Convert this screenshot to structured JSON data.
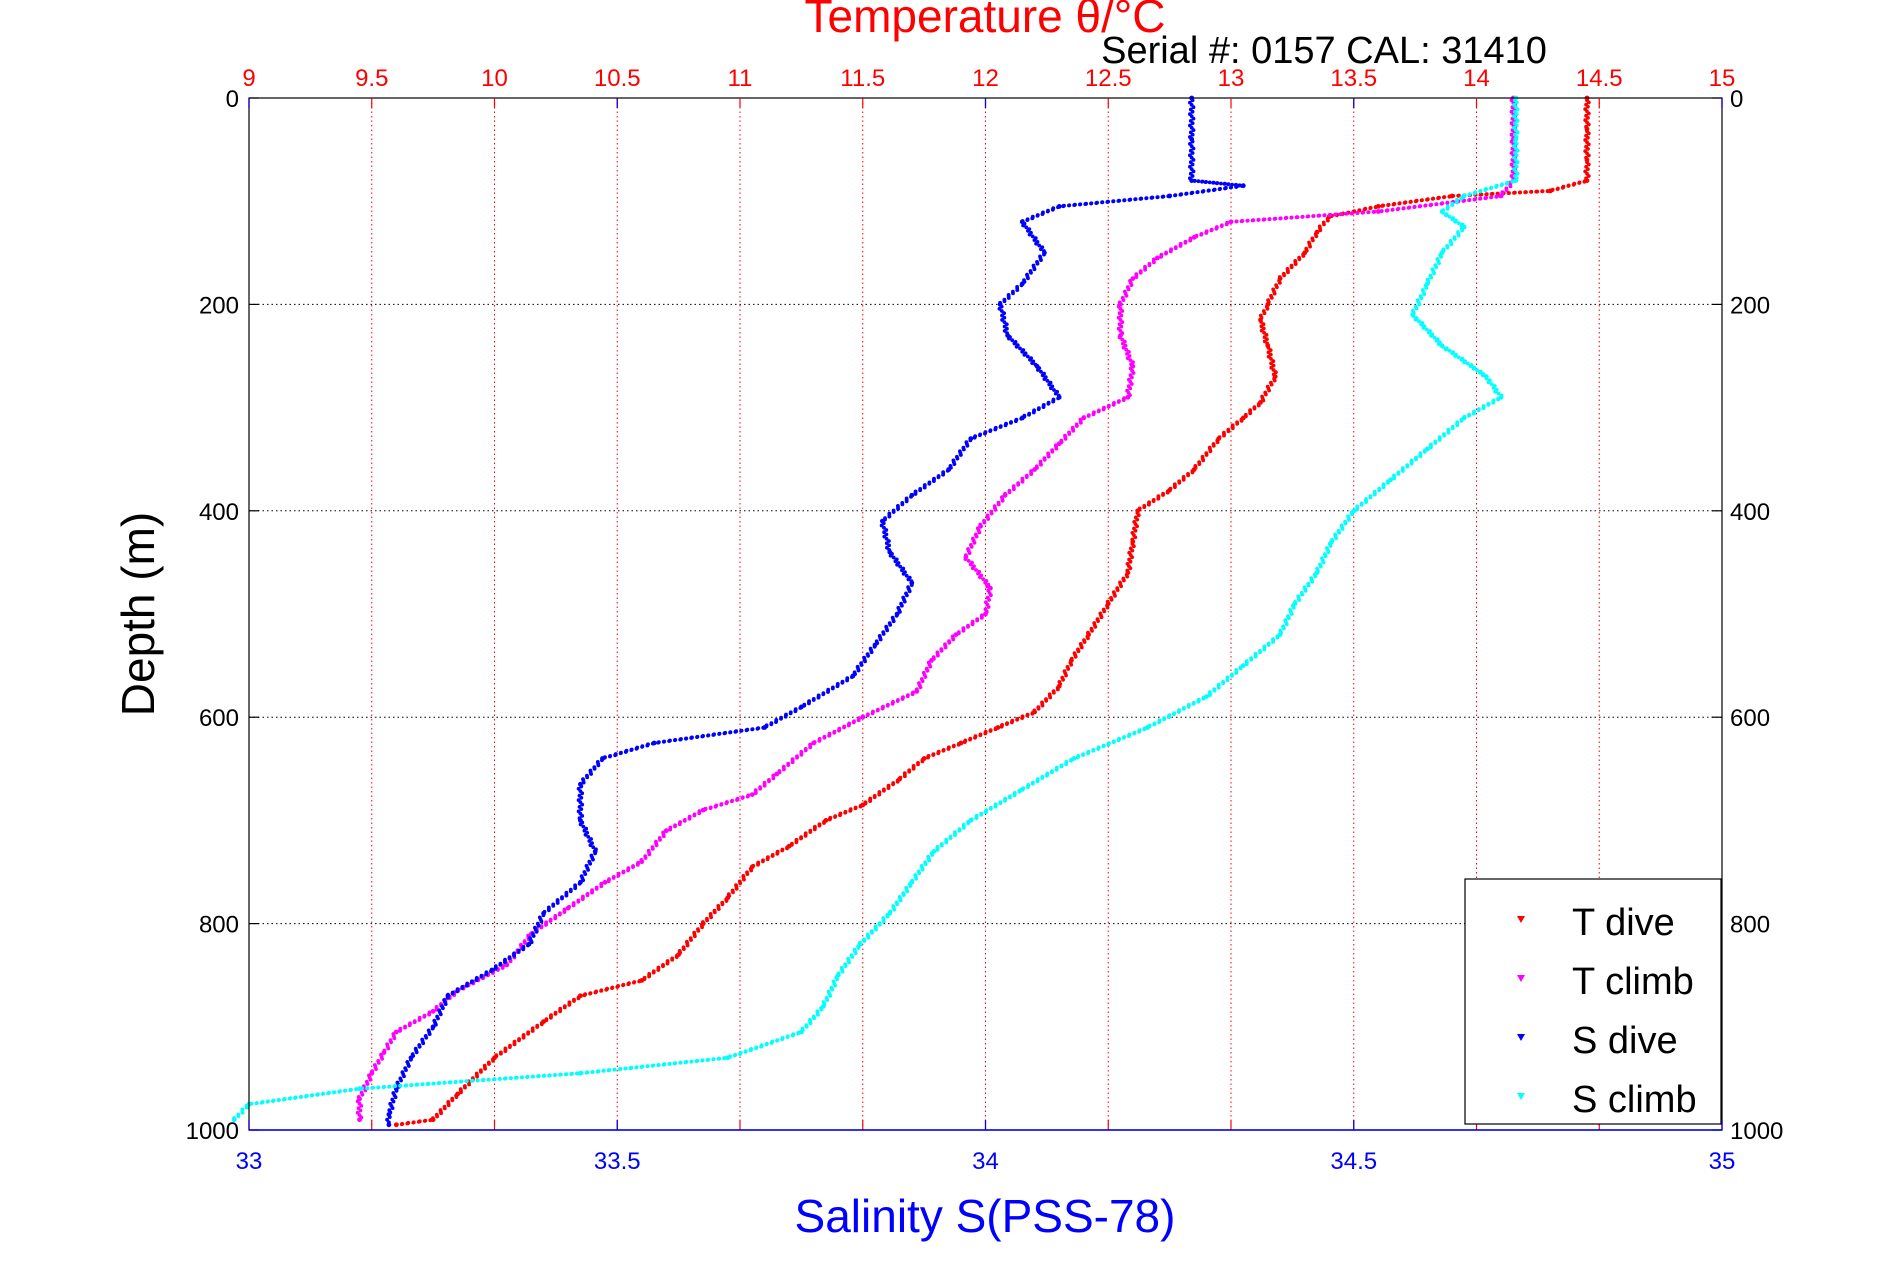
{
  "chart_data": {
    "type": "scatter",
    "title": "Temperature θ/°C",
    "subtitle": "Serial #: 0157  CAL: 31410",
    "ylabel": "Depth (m)",
    "xlabel": "Salinity S(PSS-78)",
    "top_axis": {
      "label": "Temperature θ/°C",
      "range": [
        9,
        15
      ],
      "ticks": [
        9,
        9.5,
        10,
        10.5,
        11,
        11.5,
        12,
        12.5,
        13,
        13.5,
        14,
        14.5,
        15
      ],
      "tick_labels": [
        "9",
        "9.5",
        "10",
        "10.5",
        "11",
        "11.5",
        "12",
        "12.5",
        "13",
        "13.5",
        "14",
        "14.5",
        "15"
      ],
      "color": "#ff0000"
    },
    "bottom_axis": {
      "label": "Salinity S(PSS-78)",
      "range": [
        33,
        35
      ],
      "ticks": [
        33,
        33.5,
        34,
        34.5,
        35
      ],
      "tick_labels": [
        "33",
        "33.5",
        "34",
        "34.5",
        "35"
      ],
      "color": "#0000ff"
    },
    "y_axis": {
      "range": [
        0,
        1000
      ],
      "reversed": true,
      "ticks": [
        0,
        200,
        400,
        600,
        800,
        1000
      ],
      "tick_labels": [
        "0",
        "200",
        "400",
        "600",
        "800",
        "1000"
      ]
    },
    "grid": true,
    "legend": "bottom-right",
    "series": [
      {
        "name": "T dive",
        "axis": "top",
        "color": "#ff0000",
        "points": [
          [
            14.45,
            0
          ],
          [
            14.45,
            30
          ],
          [
            14.45,
            60
          ],
          [
            14.45,
            80
          ],
          [
            14.3,
            90
          ],
          [
            13.9,
            95
          ],
          [
            13.6,
            105
          ],
          [
            13.4,
            115
          ],
          [
            13.35,
            130
          ],
          [
            13.3,
            150
          ],
          [
            13.2,
            175
          ],
          [
            13.15,
            200
          ],
          [
            13.12,
            215
          ],
          [
            13.15,
            240
          ],
          [
            13.18,
            270
          ],
          [
            13.12,
            295
          ],
          [
            13.05,
            310
          ],
          [
            12.95,
            330
          ],
          [
            12.85,
            360
          ],
          [
            12.75,
            380
          ],
          [
            12.62,
            400
          ],
          [
            12.6,
            430
          ],
          [
            12.58,
            460
          ],
          [
            12.5,
            490
          ],
          [
            12.42,
            520
          ],
          [
            12.35,
            545
          ],
          [
            12.3,
            570
          ],
          [
            12.2,
            595
          ],
          [
            12.05,
            610
          ],
          [
            11.9,
            625
          ],
          [
            11.75,
            640
          ],
          [
            11.65,
            660
          ],
          [
            11.5,
            685
          ],
          [
            11.35,
            700
          ],
          [
            11.2,
            725
          ],
          [
            11.05,
            745
          ],
          [
            10.95,
            775
          ],
          [
            10.85,
            800
          ],
          [
            10.75,
            830
          ],
          [
            10.6,
            855
          ],
          [
            10.35,
            870
          ],
          [
            10.2,
            895
          ],
          [
            10,
            930
          ],
          [
            9.85,
            965
          ],
          [
            9.75,
            990
          ],
          [
            9.6,
            995
          ]
        ]
      },
      {
        "name": "T climb",
        "axis": "top",
        "color": "#ff00ff",
        "points": [
          [
            14.15,
            0
          ],
          [
            14.15,
            40
          ],
          [
            14.15,
            80
          ],
          [
            14.1,
            95
          ],
          [
            13.6,
            110
          ],
          [
            13.0,
            120
          ],
          [
            12.85,
            135
          ],
          [
            12.7,
            155
          ],
          [
            12.6,
            175
          ],
          [
            12.55,
            200
          ],
          [
            12.55,
            230
          ],
          [
            12.6,
            260
          ],
          [
            12.58,
            290
          ],
          [
            12.4,
            310
          ],
          [
            12.3,
            335
          ],
          [
            12.2,
            360
          ],
          [
            12.08,
            385
          ],
          [
            11.98,
            415
          ],
          [
            11.92,
            445
          ],
          [
            12.02,
            475
          ],
          [
            12.0,
            500
          ],
          [
            11.88,
            520
          ],
          [
            11.78,
            545
          ],
          [
            11.72,
            575
          ],
          [
            11.5,
            600
          ],
          [
            11.3,
            625
          ],
          [
            11.15,
            655
          ],
          [
            11.05,
            675
          ],
          [
            10.85,
            690
          ],
          [
            10.7,
            710
          ],
          [
            10.6,
            740
          ],
          [
            10.45,
            760
          ],
          [
            10.3,
            785
          ],
          [
            10.15,
            810
          ],
          [
            10.05,
            840
          ],
          [
            9.85,
            865
          ],
          [
            9.75,
            885
          ],
          [
            9.6,
            905
          ],
          [
            9.55,
            925
          ],
          [
            9.5,
            945
          ],
          [
            9.45,
            970
          ],
          [
            9.45,
            990
          ]
        ]
      },
      {
        "name": "S dive",
        "axis": "bottom",
        "color": "#0000ff",
        "points": [
          [
            34.28,
            0
          ],
          [
            34.28,
            40
          ],
          [
            34.28,
            80
          ],
          [
            34.35,
            85
          ],
          [
            34.25,
            95
          ],
          [
            34.1,
            105
          ],
          [
            34.05,
            120
          ],
          [
            34.08,
            150
          ],
          [
            34.05,
            180
          ],
          [
            34.02,
            200
          ],
          [
            34.03,
            230
          ],
          [
            34.07,
            260
          ],
          [
            34.1,
            290
          ],
          [
            34.05,
            310
          ],
          [
            33.98,
            330
          ],
          [
            33.95,
            360
          ],
          [
            33.9,
            385
          ],
          [
            33.86,
            410
          ],
          [
            33.87,
            440
          ],
          [
            33.9,
            470
          ],
          [
            33.88,
            500
          ],
          [
            33.85,
            530
          ],
          [
            33.82,
            560
          ],
          [
            33.75,
            590
          ],
          [
            33.7,
            610
          ],
          [
            33.55,
            625
          ],
          [
            33.48,
            640
          ],
          [
            33.45,
            665
          ],
          [
            33.45,
            700
          ],
          [
            33.47,
            730
          ],
          [
            33.45,
            760
          ],
          [
            33.4,
            790
          ],
          [
            33.38,
            820
          ],
          [
            33.33,
            845
          ],
          [
            33.27,
            870
          ],
          [
            33.25,
            900
          ],
          [
            33.22,
            930
          ],
          [
            33.2,
            960
          ],
          [
            33.19,
            985
          ],
          [
            33.19,
            995
          ]
        ]
      },
      {
        "name": "S climb",
        "axis": "bottom",
        "color": "#00ffff",
        "points": [
          [
            34.72,
            0
          ],
          [
            34.72,
            40
          ],
          [
            34.72,
            80
          ],
          [
            34.65,
            95
          ],
          [
            34.62,
            110
          ],
          [
            34.65,
            125
          ],
          [
            34.62,
            150
          ],
          [
            34.6,
            180
          ],
          [
            34.58,
            210
          ],
          [
            34.62,
            240
          ],
          [
            34.68,
            270
          ],
          [
            34.7,
            290
          ],
          [
            34.65,
            310
          ],
          [
            34.6,
            340
          ],
          [
            34.55,
            370
          ],
          [
            34.5,
            400
          ],
          [
            34.47,
            430
          ],
          [
            34.45,
            460
          ],
          [
            34.42,
            490
          ],
          [
            34.4,
            520
          ],
          [
            34.35,
            550
          ],
          [
            34.3,
            580
          ],
          [
            34.22,
            610
          ],
          [
            34.12,
            640
          ],
          [
            34.05,
            670
          ],
          [
            33.98,
            700
          ],
          [
            33.93,
            730
          ],
          [
            33.9,
            760
          ],
          [
            33.87,
            790
          ],
          [
            33.83,
            820
          ],
          [
            33.8,
            850
          ],
          [
            33.78,
            880
          ],
          [
            33.75,
            905
          ],
          [
            33.65,
            930
          ],
          [
            33.45,
            945
          ],
          [
            33.15,
            960
          ],
          [
            33.0,
            975
          ],
          [
            32.98,
            990
          ]
        ]
      }
    ]
  }
}
